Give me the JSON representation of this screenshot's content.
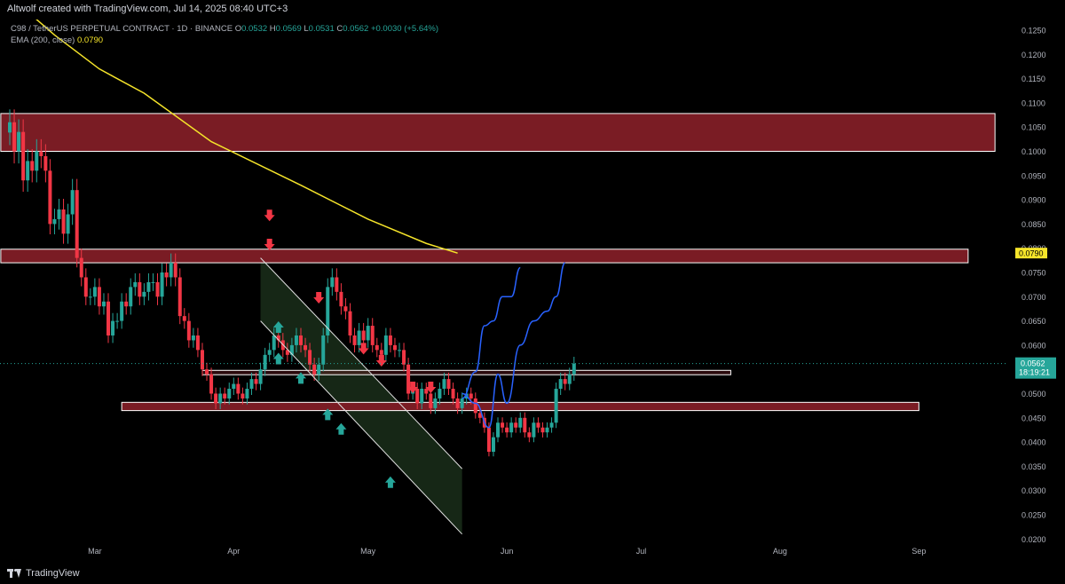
{
  "header": {
    "attribution": "Altwolf created with TradingView.com, Jul 14, 2025 08:40 UTC+3"
  },
  "legend": {
    "symbol": "C98 / TetherUS PERPETUAL CONTRACT · 1D · BINANCE",
    "o_label": "O",
    "o_value": "0.0532",
    "h_label": "H",
    "h_value": "0.0569",
    "l_label": "L",
    "l_value": "0.0531",
    "c_label": "C",
    "c_value": "0.0562",
    "change": "+0.0030 (+5.64%)",
    "ema_label": "EMA (200, close)",
    "ema_value": "0.0790"
  },
  "footer": {
    "brand": "TradingView"
  },
  "colors": {
    "bull": "#26a69a",
    "bear": "#f23645",
    "zone": "#7a1c24",
    "ema": "#f5e42a",
    "projection": "#2962ff",
    "channel": "#1a2e1a"
  },
  "chart_data": {
    "type": "candlestick",
    "symbol": "C98 / TetherUS PERPETUAL CONTRACT",
    "timeframe": "1D",
    "exchange": "BINANCE",
    "ylim": [
      0.02,
      0.128
    ],
    "y_ticks": [
      "0.1250",
      "0.1200",
      "0.1150",
      "0.1100",
      "0.1050",
      "0.1000",
      "0.0950",
      "0.0900",
      "0.0850",
      "0.0800",
      "0.0750",
      "0.0700",
      "0.0650",
      "0.0600",
      "0.0550",
      "0.0500",
      "0.0450",
      "0.0400",
      "0.0350",
      "0.0300",
      "0.0250",
      "0.0200"
    ],
    "x_ticks": [
      {
        "label": "Mar",
        "day": 19
      },
      {
        "label": "Apr",
        "day": 50
      },
      {
        "label": "May",
        "day": 80
      },
      {
        "label": "Jun",
        "day": 111
      },
      {
        "label": "Jul",
        "day": 141
      },
      {
        "label": "Aug",
        "day": 172
      },
      {
        "label": "Sep",
        "day": 203
      }
    ],
    "last_price": "0.0562",
    "countdown": "18:19:21",
    "ema_label_value": "0.0790",
    "closes": [
      0.106,
      0.1,
      0.104,
      0.094,
      0.098,
      0.096,
      0.1,
      0.099,
      0.096,
      0.085,
      0.086,
      0.088,
      0.083,
      0.087,
      0.092,
      0.078,
      0.074,
      0.07,
      0.07,
      0.072,
      0.068,
      0.069,
      0.062,
      0.065,
      0.065,
      0.069,
      0.068,
      0.072,
      0.073,
      0.07,
      0.071,
      0.073,
      0.073,
      0.07,
      0.075,
      0.074,
      0.077,
      0.074,
      0.066,
      0.065,
      0.061,
      0.062,
      0.059,
      0.055,
      0.054,
      0.05,
      0.048,
      0.05,
      0.049,
      0.051,
      0.052,
      0.05,
      0.049,
      0.051,
      0.053,
      0.052,
      0.055,
      0.058,
      0.059,
      0.062,
      0.061,
      0.059,
      0.058,
      0.06,
      0.062,
      0.06,
      0.059,
      0.056,
      0.054,
      0.056,
      0.062,
      0.072,
      0.074,
      0.071,
      0.068,
      0.067,
      0.062,
      0.06,
      0.063,
      0.061,
      0.064,
      0.06,
      0.059,
      0.058,
      0.062,
      0.06,
      0.059,
      0.059,
      0.056,
      0.05,
      0.051,
      0.048,
      0.051,
      0.05,
      0.047,
      0.049,
      0.051,
      0.053,
      0.051,
      0.049,
      0.047,
      0.049,
      0.05,
      0.049,
      0.046,
      0.045,
      0.043,
      0.038,
      0.041,
      0.044,
      0.043,
      0.042,
      0.044,
      0.043,
      0.045,
      0.042,
      0.041,
      0.044,
      0.043,
      0.042,
      0.043,
      0.044,
      0.051,
      0.053,
      0.052,
      0.054,
      0.0562
    ],
    "ema_200": [
      {
        "day": 0,
        "value": 0.132
      },
      {
        "day": 10,
        "value": 0.124
      },
      {
        "day": 20,
        "value": 0.117
      },
      {
        "day": 30,
        "value": 0.112
      },
      {
        "day": 45,
        "value": 0.102
      },
      {
        "day": 65,
        "value": 0.093
      },
      {
        "day": 80,
        "value": 0.086
      },
      {
        "day": 93,
        "value": 0.081
      },
      {
        "day": 100,
        "value": 0.079
      }
    ],
    "resistance_zones": [
      {
        "low": 0.1,
        "high": 0.1078,
        "from_day": -2,
        "to_day": 220
      },
      {
        "low": 0.077,
        "high": 0.0798,
        "from_day": -2,
        "to_day": 214
      }
    ],
    "support_zones": [
      {
        "low": 0.0465,
        "high": 0.0482,
        "from_day": 25,
        "to_day": 203
      },
      {
        "low": 0.0539,
        "high": 0.0548,
        "from_day": 43,
        "to_day": 161
      }
    ],
    "descending_channel": {
      "upper": [
        {
          "day": 56,
          "value": 0.078
        },
        {
          "day": 101,
          "value": 0.0345
        }
      ],
      "lower": [
        {
          "day": 56,
          "value": 0.065
        },
        {
          "day": 101,
          "value": 0.021
        }
      ]
    },
    "sell_arrows": [
      {
        "day": 58,
        "value": 0.0865
      },
      {
        "day": 58,
        "value": 0.0805
      },
      {
        "day": 69,
        "value": 0.0695
      },
      {
        "day": 79,
        "value": 0.059
      },
      {
        "day": 83,
        "value": 0.0565
      },
      {
        "day": 90,
        "value": 0.051
      },
      {
        "day": 94,
        "value": 0.051
      }
    ],
    "buy_arrows": [
      {
        "day": 60,
        "value": 0.064
      },
      {
        "day": 60,
        "value": 0.0575
      },
      {
        "day": 65,
        "value": 0.0535
      },
      {
        "day": 71,
        "value": 0.046
      },
      {
        "day": 74,
        "value": 0.043
      },
      {
        "day": 85,
        "value": 0.032
      }
    ],
    "projections": [
      [
        {
          "day": 101,
          "value": 0.049
        },
        {
          "day": 104,
          "value": 0.0545
        },
        {
          "day": 106,
          "value": 0.064
        },
        {
          "day": 108,
          "value": 0.065
        },
        {
          "day": 110,
          "value": 0.07
        },
        {
          "day": 112,
          "value": 0.07
        },
        {
          "day": 114,
          "value": 0.076
        }
      ],
      [
        {
          "day": 101,
          "value": 0.05
        },
        {
          "day": 104,
          "value": 0.048
        },
        {
          "day": 107,
          "value": 0.043
        },
        {
          "day": 109,
          "value": 0.054
        },
        {
          "day": 111,
          "value": 0.048
        },
        {
          "day": 114,
          "value": 0.06
        },
        {
          "day": 117,
          "value": 0.065
        },
        {
          "day": 120,
          "value": 0.067
        },
        {
          "day": 122,
          "value": 0.07
        },
        {
          "day": 124,
          "value": 0.077
        }
      ]
    ]
  }
}
